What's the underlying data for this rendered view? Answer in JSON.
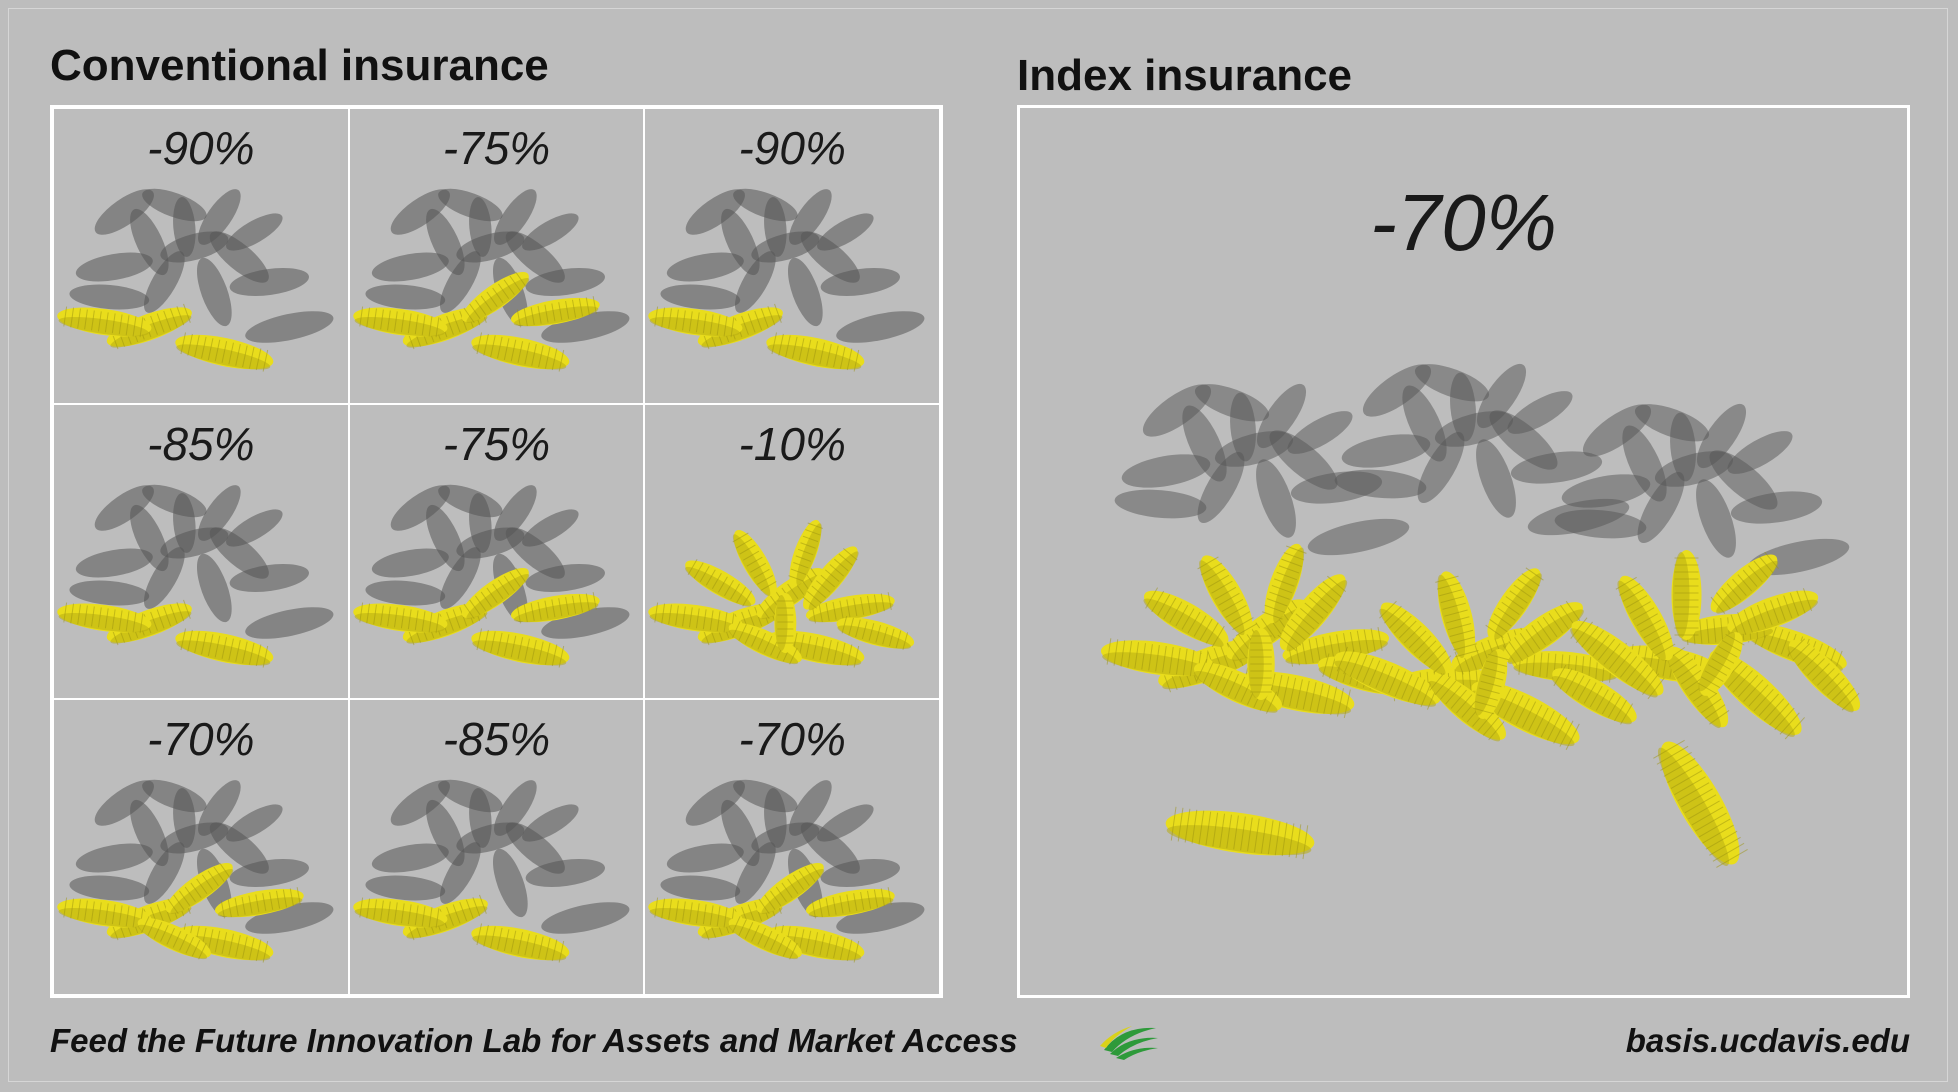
{
  "conventional": {
    "title": "Conventional insurance",
    "cells": [
      {
        "loss_label": "-90%",
        "loss_pct": 90
      },
      {
        "loss_label": "-75%",
        "loss_pct": 75
      },
      {
        "loss_label": "-90%",
        "loss_pct": 90
      },
      {
        "loss_label": "-85%",
        "loss_pct": 85
      },
      {
        "loss_label": "-75%",
        "loss_pct": 75
      },
      {
        "loss_label": "-10%",
        "loss_pct": 10
      },
      {
        "loss_label": "-70%",
        "loss_pct": 70
      },
      {
        "loss_label": "-85%",
        "loss_pct": 85
      },
      {
        "loss_label": "-70%",
        "loss_pct": 70
      }
    ]
  },
  "index": {
    "title": "Index insurance",
    "loss_label": "-70%",
    "loss_pct": 70
  },
  "footer": {
    "organization": "Feed the Future Innovation Lab for Assets and Market Access",
    "url": "basis.ucdavis.edu"
  },
  "colors": {
    "background": "#bdbdbd",
    "lost_corn": "#555555",
    "healthy_corn": "#e9dd1c",
    "logo_green": "#2e9a3a",
    "logo_yellow": "#d9d21a"
  },
  "icons": {
    "lost_corn": "gray-corn-cob-icon",
    "healthy_corn": "yellow-corn-cob-icon",
    "logo": "lab-logo-icon"
  }
}
